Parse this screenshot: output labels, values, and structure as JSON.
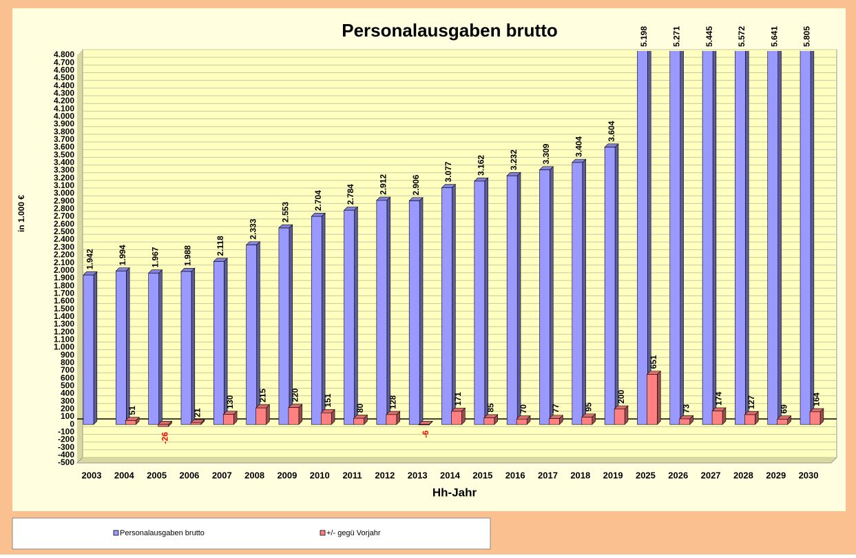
{
  "chart_data": {
    "type": "bar3d",
    "title": "Personalausgaben brutto",
    "x_label": "Hh-Jahr",
    "y_label": "in 1.000 €",
    "categories": [
      "2003",
      "2004",
      "2005",
      "2006",
      "2007",
      "2008",
      "2009",
      "2010",
      "2011",
      "2012",
      "2013",
      "2014",
      "2015",
      "2016",
      "2017",
      "2018",
      "2019",
      "2025",
      "2026",
      "2027",
      "2028",
      "2029",
      "2030"
    ],
    "series": [
      {
        "name": "Personalausgaben brutto",
        "color": "#9999ff",
        "values": [
          1942,
          1994,
          1967,
          1988,
          2118,
          2333,
          2553,
          2704,
          2784,
          2912,
          2906,
          3077,
          3162,
          3232,
          3309,
          3404,
          3604,
          5198,
          5271,
          5445,
          5572,
          5641,
          5805
        ],
        "value_labels": [
          "1.942",
          "1.994",
          "1.967",
          "1.988",
          "2.118",
          "2.333",
          "2.553",
          "2.704",
          "2.784",
          "2.912",
          "2.906",
          "3.077",
          "3.162",
          "3.232",
          "3.309",
          "3.404",
          "3.604",
          "5.198",
          "5.271",
          "5.445",
          "5.572",
          "5.641",
          "5.805"
        ]
      },
      {
        "name": "+/- gegü Vorjahr",
        "color": "#ff8080",
        "values": [
          null,
          51,
          -26,
          21,
          130,
          215,
          220,
          151,
          80,
          128,
          -6,
          171,
          85,
          70,
          77,
          95,
          200,
          651,
          73,
          174,
          127,
          69,
          164
        ]
      }
    ],
    "ylim": [
      -500,
      4800
    ],
    "yticks": [
      -500,
      -400,
      -300,
      -200,
      -100,
      0,
      100,
      200,
      300,
      400,
      500,
      600,
      700,
      800,
      900,
      {
        "value": 1000,
        "label": "1.000"
      },
      {
        "value": 1100,
        "label": "1.100"
      },
      {
        "value": 1200,
        "label": "1.200"
      },
      {
        "value": 1300,
        "label": "1.300"
      },
      {
        "value": 1400,
        "label": "1.400"
      },
      {
        "value": 1500,
        "label": "1.500"
      },
      {
        "value": 1600,
        "label": "1.600"
      },
      {
        "value": 1700,
        "label": "1.700"
      },
      {
        "value": 1800,
        "label": "1.800"
      },
      {
        "value": 1900,
        "label": "1.900"
      },
      {
        "value": 2000,
        "label": "2.000"
      },
      {
        "value": 2100,
        "label": "2.100"
      },
      {
        "value": 2200,
        "label": "2.200"
      },
      {
        "value": 2300,
        "label": "2.300"
      },
      {
        "value": 2400,
        "label": "2.400"
      },
      {
        "value": 2500,
        "label": "2.500"
      },
      {
        "value": 2600,
        "label": "2.600"
      },
      {
        "value": 2700,
        "label": "2.700"
      },
      {
        "value": 2800,
        "label": "2.800"
      },
      {
        "value": 2900,
        "label": "2.900"
      },
      {
        "value": 3000,
        "label": "3.000"
      },
      {
        "value": 3100,
        "label": "3.100"
      },
      {
        "value": 3200,
        "label": "3.200"
      },
      {
        "value": 3300,
        "label": "3.300"
      },
      {
        "value": 3400,
        "label": "3.400"
      },
      {
        "value": 3500,
        "label": "3.500"
      },
      {
        "value": 3600,
        "label": "3.600"
      },
      {
        "value": 3700,
        "label": "3.700"
      },
      {
        "value": 3800,
        "label": "3.800"
      },
      {
        "value": 3900,
        "label": "3.900"
      },
      {
        "value": 4000,
        "label": "4.000"
      },
      {
        "value": 4100,
        "label": "4.100"
      },
      {
        "value": 4200,
        "label": "4.200"
      },
      {
        "value": 4300,
        "label": "4.300"
      },
      {
        "value": 4400,
        "label": "4.400"
      },
      {
        "value": 4500,
        "label": "4.500"
      },
      {
        "value": 4600,
        "label": "4.600"
      },
      {
        "value": 4700,
        "label": "4.700"
      },
      {
        "value": 4800,
        "label": "4.800"
      }
    ],
    "grid": true,
    "legend": "bottom-left"
  }
}
